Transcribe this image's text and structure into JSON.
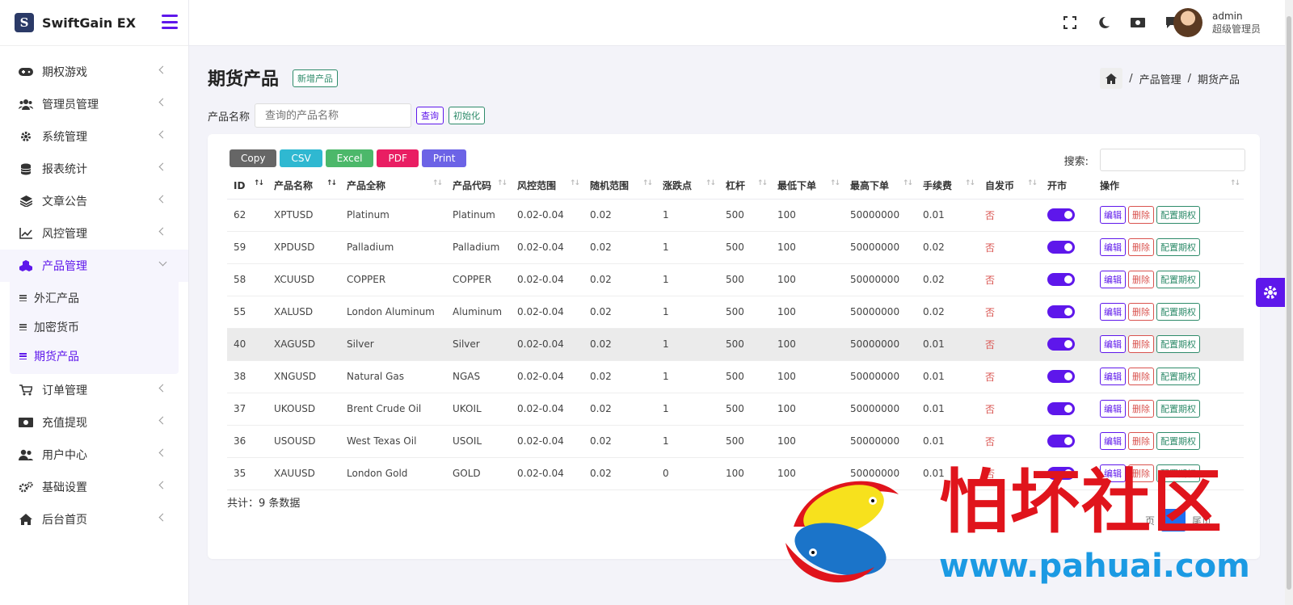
{
  "brand": {
    "name": "SwiftGain EX",
    "logo_glyph": "S"
  },
  "sidebar": {
    "items": [
      {
        "label": "期权游戏",
        "icon": "gamepad-icon"
      },
      {
        "label": "管理员管理",
        "icon": "users-icon"
      },
      {
        "label": "系统管理",
        "icon": "gear-icon"
      },
      {
        "label": "报表统计",
        "icon": "coins-icon"
      },
      {
        "label": "文章公告",
        "icon": "layers-icon"
      },
      {
        "label": "风控管理",
        "icon": "line-chart-icon"
      },
      {
        "label": "产品管理",
        "icon": "cubes-icon"
      },
      {
        "label": "订单管理",
        "icon": "cart-icon"
      },
      {
        "label": "充值提现",
        "icon": "money-icon"
      },
      {
        "label": "用户中心",
        "icon": "user-group-icon"
      },
      {
        "label": "基础设置",
        "icon": "cogs-icon"
      },
      {
        "label": "后台首页",
        "icon": "home-icon"
      }
    ],
    "submenu": [
      {
        "label": "外汇产品"
      },
      {
        "label": "加密货币"
      },
      {
        "label": "期货产品"
      }
    ]
  },
  "user": {
    "name": "admin",
    "role": "超级管理员"
  },
  "page": {
    "title": "期货产品",
    "new_button": "新增产品",
    "breadcrumb": {
      "parent": "产品管理",
      "current": "期货产品"
    }
  },
  "filter": {
    "label": "产品名称",
    "placeholder": "查询的产品名称",
    "query_button": "查询",
    "reset_button": "初始化"
  },
  "export_buttons": [
    {
      "label": "Copy",
      "color": "#666666"
    },
    {
      "label": "CSV",
      "color": "#2fb8d1"
    },
    {
      "label": "Excel",
      "color": "#4cb86a"
    },
    {
      "label": "PDF",
      "color": "#e91e63"
    },
    {
      "label": "Print",
      "color": "#6c63e6"
    }
  ],
  "search_label": "搜索:",
  "table": {
    "columns": [
      "ID",
      "产品名称",
      "产品全称",
      "产品代码",
      "风控范围",
      "随机范围",
      "涨跌点",
      "杠杆",
      "最低下单",
      "最高下单",
      "手续费",
      "自发币",
      "开市",
      "操作"
    ],
    "rows": [
      [
        "62",
        "XPTUSD",
        "Platinum",
        "Platinum",
        "0.02-0.04",
        "0.02",
        "1",
        "500",
        "100",
        "50000000",
        "0.01",
        "否"
      ],
      [
        "59",
        "XPDUSD",
        "Palladium",
        "Palladium",
        "0.02-0.04",
        "0.02",
        "1",
        "500",
        "100",
        "50000000",
        "0.02",
        "否"
      ],
      [
        "58",
        "XCUUSD",
        "COPPER",
        "COPPER",
        "0.02-0.04",
        "0.02",
        "1",
        "500",
        "100",
        "50000000",
        "0.02",
        "否"
      ],
      [
        "55",
        "XALUSD",
        "London Aluminum",
        "Aluminum",
        "0.02-0.04",
        "0.02",
        "1",
        "500",
        "100",
        "50000000",
        "0.02",
        "否"
      ],
      [
        "40",
        "XAGUSD",
        "Silver",
        "Silver",
        "0.02-0.04",
        "0.02",
        "1",
        "500",
        "100",
        "50000000",
        "0.01",
        "否"
      ],
      [
        "38",
        "XNGUSD",
        "Natural Gas",
        "NGAS",
        "0.02-0.04",
        "0.02",
        "1",
        "500",
        "100",
        "50000000",
        "0.01",
        "否"
      ],
      [
        "37",
        "UKOUSD",
        "Brent Crude Oil",
        "UKOIL",
        "0.02-0.04",
        "0.02",
        "1",
        "500",
        "100",
        "50000000",
        "0.01",
        "否"
      ],
      [
        "36",
        "USOUSD",
        "West Texas Oil",
        "USOIL",
        "0.02-0.04",
        "0.02",
        "1",
        "500",
        "100",
        "50000000",
        "0.01",
        "否"
      ],
      [
        "35",
        "XAUUSD",
        "London Gold",
        "GOLD",
        "0.02-0.04",
        "0.02",
        "0",
        "100",
        "100",
        "50000000",
        "0.01",
        "否"
      ]
    ],
    "actions": {
      "edit": "编辑",
      "delete": "删除",
      "config": "配置期权"
    }
  },
  "footer": {
    "total": "共计：9 条数据",
    "pager_prev_tail": "页",
    "pager_next": "尾页"
  },
  "watermark": {
    "title": "怕坏社区",
    "url": "www.pahuai.com"
  },
  "colors": {
    "accent": "#5e17eb",
    "danger": "#d9534f",
    "success": "#2e8b6a"
  }
}
